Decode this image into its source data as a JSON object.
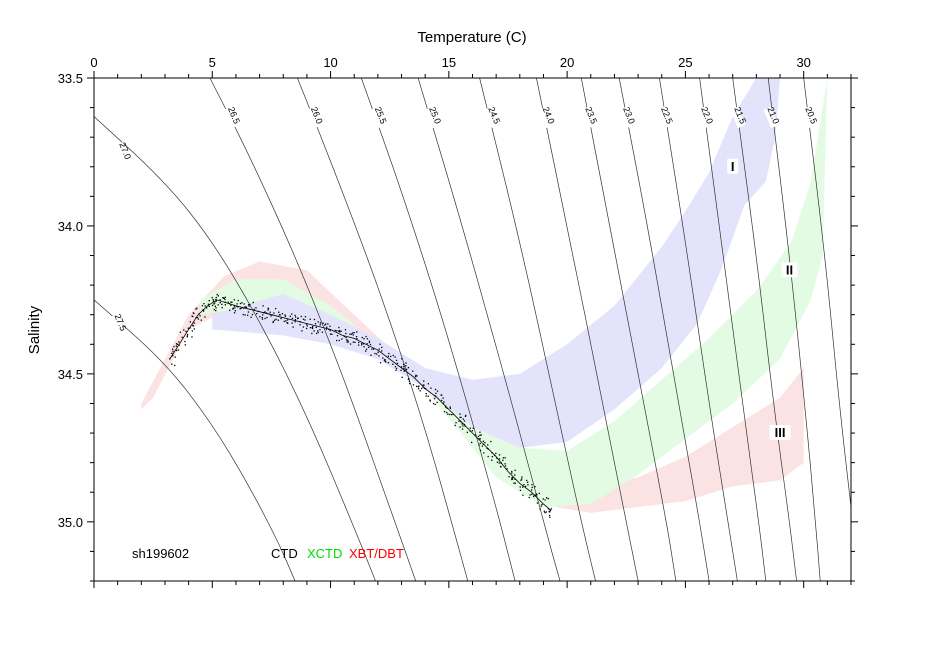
{
  "chart_data": {
    "type": "scatter",
    "xlabel": "Temperature (C)",
    "ylabel": "Salinity",
    "xlim": [
      0,
      32
    ],
    "ylim": [
      35.2,
      33.5
    ],
    "x_ticks": [
      "0",
      "5",
      "10",
      "15",
      "20",
      "25",
      "30"
    ],
    "x_tick_values": [
      0,
      5,
      10,
      15,
      20,
      25,
      30
    ],
    "y_ticks": [
      "33.5",
      "34.0",
      "34.5",
      "35.0"
    ],
    "y_tick_values": [
      33.5,
      34.0,
      34.5,
      35.0
    ],
    "y_reversed": true,
    "cruise_label": "sh199602",
    "legend": [
      {
        "name": "CTD",
        "color": "#000000"
      },
      {
        "name": "XCTD",
        "color": "#00dd00"
      },
      {
        "name": "XBT/DBT",
        "color": "#ff0000"
      }
    ],
    "isopycnals": [
      {
        "label": "27.5",
        "label_at": [
          1.0,
          34.33
        ],
        "pts": [
          [
            0.0,
            34.25
          ],
          [
            3.0,
            34.46
          ],
          [
            5.0,
            34.67
          ],
          [
            6.5,
            34.87
          ],
          [
            7.8,
            35.07
          ],
          [
            8.5,
            35.2
          ]
        ]
      },
      {
        "label": "27.0",
        "label_at": [
          1.2,
          33.75
        ],
        "pts": [
          [
            0.0,
            33.63
          ],
          [
            3.0,
            33.85
          ],
          [
            5.0,
            34.05
          ],
          [
            7.0,
            34.32
          ],
          [
            9.0,
            34.64
          ],
          [
            11.0,
            35.02
          ],
          [
            11.9,
            35.2
          ]
        ]
      },
      {
        "label": "26.5",
        "label_at": [
          5.8,
          33.63
        ],
        "pts": [
          [
            4.9,
            33.5
          ],
          [
            6.5,
            33.75
          ],
          [
            8.5,
            34.1
          ],
          [
            10.5,
            34.5
          ],
          [
            12.5,
            34.95
          ],
          [
            13.6,
            35.2
          ]
        ]
      },
      {
        "label": "26.0",
        "label_at": [
          9.3,
          33.63
        ],
        "pts": [
          [
            8.6,
            33.5
          ],
          [
            10.0,
            33.78
          ],
          [
            12.0,
            34.2
          ],
          [
            14.0,
            34.68
          ],
          [
            15.8,
            35.2
          ]
        ]
      },
      {
        "label": "25.5",
        "label_at": [
          12.0,
          33.63
        ],
        "pts": [
          [
            11.3,
            33.5
          ],
          [
            13.0,
            33.88
          ],
          [
            15.0,
            34.38
          ],
          [
            17.0,
            34.95
          ],
          [
            17.8,
            35.2
          ]
        ]
      },
      {
        "label": "25.0",
        "label_at": [
          14.3,
          33.63
        ],
        "pts": [
          [
            13.7,
            33.5
          ],
          [
            15.5,
            33.98
          ],
          [
            17.5,
            34.55
          ],
          [
            19.0,
            35.0
          ],
          [
            19.7,
            35.2
          ]
        ]
      },
      {
        "label": "24.5",
        "label_at": [
          16.8,
          33.63
        ],
        "pts": [
          [
            16.3,
            33.5
          ],
          [
            18.0,
            34.05
          ],
          [
            19.5,
            34.6
          ],
          [
            20.6,
            35.0
          ],
          [
            21.2,
            35.2
          ]
        ]
      },
      {
        "label": "24.0",
        "label_at": [
          19.1,
          33.63
        ],
        "pts": [
          [
            18.7,
            33.5
          ],
          [
            20.0,
            34.0
          ],
          [
            21.5,
            34.6
          ],
          [
            22.5,
            35.0
          ],
          [
            23.0,
            35.2
          ]
        ]
      },
      {
        "label": "23.5",
        "label_at": [
          20.9,
          33.63
        ],
        "pts": [
          [
            20.6,
            33.5
          ],
          [
            21.8,
            34.0
          ],
          [
            23.0,
            34.5
          ],
          [
            24.2,
            35.0
          ],
          [
            24.6,
            35.2
          ]
        ]
      },
      {
        "label": "23.0",
        "label_at": [
          22.5,
          33.63
        ],
        "pts": [
          [
            22.2,
            33.5
          ],
          [
            23.4,
            34.0
          ],
          [
            24.6,
            34.55
          ],
          [
            25.6,
            35.0
          ],
          [
            26.0,
            35.2
          ]
        ]
      },
      {
        "label": "22.5",
        "label_at": [
          24.1,
          33.63
        ],
        "pts": [
          [
            23.9,
            33.5
          ],
          [
            25.0,
            34.05
          ],
          [
            26.0,
            34.6
          ],
          [
            26.8,
            35.0
          ],
          [
            27.2,
            35.2
          ]
        ]
      },
      {
        "label": "22.0",
        "label_at": [
          25.8,
          33.63
        ],
        "pts": [
          [
            25.6,
            33.5
          ],
          [
            26.6,
            34.1
          ],
          [
            27.5,
            34.65
          ],
          [
            28.1,
            35.0
          ],
          [
            28.4,
            35.2
          ]
        ]
      },
      {
        "label": "21.5",
        "label_at": [
          27.2,
          33.63
        ],
        "pts": [
          [
            27.0,
            33.5
          ],
          [
            28.0,
            34.1
          ],
          [
            28.8,
            34.65
          ],
          [
            29.4,
            35.0
          ],
          [
            29.7,
            35.2
          ]
        ]
      },
      {
        "label": "21.0",
        "label_at": [
          28.6,
          33.63
        ],
        "pts": [
          [
            28.5,
            33.5
          ],
          [
            29.4,
            34.1
          ],
          [
            30.1,
            34.65
          ],
          [
            30.5,
            35.0
          ],
          [
            30.7,
            35.2
          ]
        ]
      },
      {
        "label": "20.5",
        "label_at": [
          30.2,
          33.63
        ],
        "pts": [
          [
            30.0,
            33.5
          ],
          [
            30.9,
            34.1
          ],
          [
            31.5,
            34.6
          ],
          [
            32.0,
            34.95
          ]
        ]
      }
    ],
    "envelopes": [
      {
        "name": "I",
        "color": "#e3e3fb",
        "label_at": [
          27.0,
          33.8
        ],
        "upper": [
          [
            5.0,
            34.3
          ],
          [
            8.0,
            34.23
          ],
          [
            10.0,
            34.3
          ],
          [
            12.0,
            34.38
          ],
          [
            14.0,
            34.48
          ],
          [
            16.0,
            34.52
          ],
          [
            18.0,
            34.5
          ],
          [
            20.0,
            34.4
          ],
          [
            22.0,
            34.27
          ],
          [
            24.0,
            34.07
          ],
          [
            25.0,
            33.95
          ],
          [
            26.0,
            33.82
          ],
          [
            27.0,
            33.63
          ],
          [
            28.0,
            33.5
          ],
          [
            28.9,
            33.5
          ]
        ],
        "lower": [
          [
            29.0,
            33.5
          ],
          [
            28.8,
            33.7
          ],
          [
            28.4,
            33.85
          ],
          [
            27.5,
            33.93
          ],
          [
            26.5,
            34.15
          ],
          [
            25.5,
            34.33
          ],
          [
            24.0,
            34.48
          ],
          [
            22.0,
            34.62
          ],
          [
            20.0,
            34.73
          ],
          [
            18.0,
            34.75
          ],
          [
            16.0,
            34.68
          ],
          [
            14.0,
            34.55
          ],
          [
            12.0,
            34.45
          ],
          [
            10.0,
            34.4
          ],
          [
            8.0,
            34.37
          ],
          [
            5.0,
            34.35
          ]
        ]
      },
      {
        "name": "II",
        "color": "#e3fbe3",
        "label_at": [
          29.4,
          34.15
        ],
        "upper": [
          [
            4.5,
            34.25
          ],
          [
            6.0,
            34.18
          ],
          [
            8.0,
            34.18
          ],
          [
            10.0,
            34.27
          ],
          [
            12.0,
            34.4
          ],
          [
            14.0,
            34.55
          ],
          [
            16.0,
            34.68
          ],
          [
            18.0,
            34.75
          ],
          [
            20.0,
            34.76
          ],
          [
            22.0,
            34.66
          ],
          [
            24.0,
            34.52
          ],
          [
            26.0,
            34.38
          ],
          [
            28.0,
            34.22
          ],
          [
            29.5,
            34.05
          ],
          [
            30.3,
            33.85
          ],
          [
            30.8,
            33.6
          ],
          [
            31.0,
            33.5
          ]
        ],
        "lower": [
          [
            30.8,
            34.1
          ],
          [
            30.3,
            34.25
          ],
          [
            29.0,
            34.45
          ],
          [
            27.0,
            34.6
          ],
          [
            25.0,
            34.72
          ],
          [
            23.0,
            34.84
          ],
          [
            21.0,
            34.94
          ],
          [
            19.0,
            34.95
          ],
          [
            17.0,
            34.85
          ],
          [
            15.0,
            34.65
          ],
          [
            13.0,
            34.45
          ],
          [
            11.0,
            34.38
          ],
          [
            9.0,
            34.33
          ],
          [
            6.0,
            34.28
          ],
          [
            4.5,
            34.3
          ]
        ]
      },
      {
        "name": "III",
        "color": "#fbe3e3",
        "label_at": [
          29.0,
          34.7
        ],
        "upper": [
          [
            2.0,
            34.6
          ],
          [
            4.0,
            34.3
          ],
          [
            5.5,
            34.17
          ],
          [
            7.0,
            34.12
          ],
          [
            9.0,
            34.15
          ],
          [
            11.0,
            34.3
          ],
          [
            13.0,
            34.45
          ],
          [
            15.0,
            34.6
          ],
          [
            17.0,
            34.75
          ],
          [
            19.0,
            34.85
          ],
          [
            21.0,
            34.88
          ],
          [
            23.0,
            34.85
          ],
          [
            25.0,
            34.78
          ],
          [
            27.0,
            34.68
          ],
          [
            29.0,
            34.58
          ],
          [
            30.0,
            34.48
          ]
        ],
        "lower": [
          [
            30.0,
            34.8
          ],
          [
            29.0,
            34.86
          ],
          [
            27.0,
            34.88
          ],
          [
            25.0,
            34.93
          ],
          [
            23.0,
            34.95
          ],
          [
            21.0,
            34.97
          ],
          [
            19.5,
            34.95
          ],
          [
            18.0,
            34.88
          ],
          [
            16.0,
            34.7
          ],
          [
            14.0,
            34.52
          ],
          [
            12.0,
            34.4
          ],
          [
            10.0,
            34.32
          ],
          [
            8.0,
            34.27
          ],
          [
            6.0,
            34.27
          ],
          [
            4.0,
            34.35
          ],
          [
            2.5,
            34.58
          ],
          [
            2.0,
            34.62
          ]
        ]
      }
    ],
    "ctd_trace": [
      [
        3.2,
        34.45
      ],
      [
        3.6,
        34.4
      ],
      [
        4.0,
        34.35
      ],
      [
        4.4,
        34.3
      ],
      [
        4.8,
        34.27
      ],
      [
        5.2,
        34.25
      ],
      [
        5.6,
        34.26
      ],
      [
        6.0,
        34.27
      ],
      [
        6.5,
        34.28
      ],
      [
        7.0,
        34.29
      ],
      [
        7.5,
        34.3
      ],
      [
        8.0,
        34.31
      ],
      [
        8.5,
        34.32
      ],
      [
        9.0,
        34.33
      ],
      [
        9.5,
        34.34
      ],
      [
        10.0,
        34.35
      ],
      [
        10.5,
        34.37
      ],
      [
        11.0,
        34.38
      ],
      [
        11.5,
        34.4
      ],
      [
        12.0,
        34.42
      ],
      [
        12.5,
        34.45
      ],
      [
        13.0,
        34.48
      ],
      [
        13.5,
        34.51
      ],
      [
        14.0,
        34.55
      ],
      [
        14.5,
        34.58
      ],
      [
        15.0,
        34.62
      ],
      [
        15.5,
        34.66
      ],
      [
        16.0,
        34.7
      ],
      [
        16.5,
        34.74
      ],
      [
        17.0,
        34.78
      ],
      [
        17.5,
        34.83
      ],
      [
        18.0,
        34.87
      ],
      [
        18.5,
        34.9
      ],
      [
        19.0,
        34.94
      ],
      [
        19.3,
        34.96
      ]
    ]
  }
}
